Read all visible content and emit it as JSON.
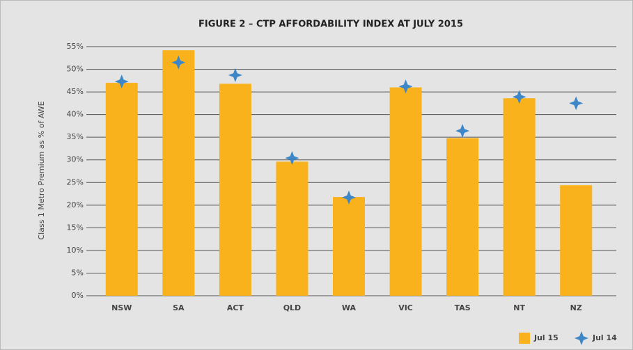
{
  "chart_data": {
    "type": "bar",
    "title": "FIGURE 2 – CTP AFFORDABILITY INDEX AT JULY 2015",
    "y_label": "Class 1 Metro Premium as % of AWE",
    "categories": [
      "NSW",
      "SA",
      "ACT",
      "QLD",
      "WA",
      "VIC",
      "TAS",
      "NT",
      "NZ"
    ],
    "series": [
      {
        "name": "Jul 15",
        "type": "bar",
        "color": "#f9b21b",
        "values": [
          47,
          54.2,
          46.8,
          29.6,
          21.8,
          46,
          34.8,
          43.6,
          24.4
        ]
      },
      {
        "name": "Jul 14",
        "type": "star",
        "color": "#3d86c8",
        "values": [
          47.3,
          51.5,
          48.7,
          30.4,
          21.7,
          46.2,
          36.4,
          43.9,
          42.5
        ]
      }
    ],
    "ylim": [
      0,
      55
    ],
    "yticks": [
      {
        "value": 0,
        "label": "0%"
      },
      {
        "value": 5,
        "label": "5%"
      },
      {
        "value": 10,
        "label": "10%"
      },
      {
        "value": 15,
        "label": "15%"
      },
      {
        "value": 20,
        "label": "20%"
      },
      {
        "value": 25,
        "label": "25%"
      },
      {
        "value": 30,
        "label": "30%"
      },
      {
        "value": 35,
        "label": "35%"
      },
      {
        "value": 40,
        "label": "40%"
      },
      {
        "value": 45,
        "label": "45%"
      },
      {
        "value": 50,
        "label": "50%"
      },
      {
        "value": 55,
        "label": "55%"
      }
    ],
    "grid": true,
    "legend": "bottom-right"
  }
}
